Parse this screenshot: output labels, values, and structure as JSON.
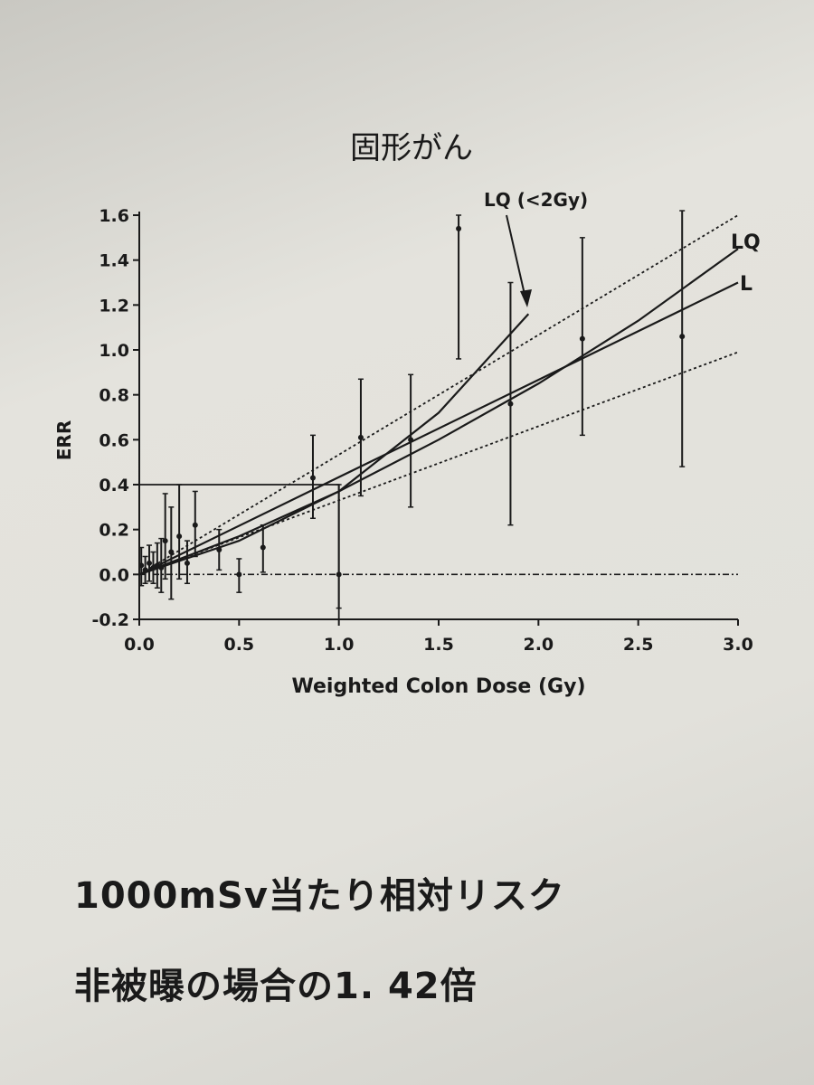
{
  "chart_data": {
    "type": "scatter",
    "title": "固形がん",
    "xlabel": "Weighted Colon Dose (Gy)",
    "ylabel": "ERR",
    "xlim": [
      0.0,
      3.0
    ],
    "ylim": [
      -0.2,
      1.6
    ],
    "x_ticks": [
      "0.0",
      "0.5",
      "1.0",
      "1.5",
      "2.0",
      "2.5",
      "3.0"
    ],
    "y_ticks": [
      "-0.2",
      "0.0",
      "0.2",
      "0.4",
      "0.6",
      "0.8",
      "1.0",
      "1.2",
      "1.4",
      "1.6"
    ],
    "points": [
      {
        "x": 0.01,
        "y": 0.04,
        "lo": -0.05,
        "hi": 0.12
      },
      {
        "x": 0.03,
        "y": 0.02,
        "lo": -0.04,
        "hi": 0.08
      },
      {
        "x": 0.05,
        "y": 0.05,
        "lo": -0.03,
        "hi": 0.13
      },
      {
        "x": 0.07,
        "y": 0.03,
        "lo": -0.04,
        "hi": 0.1
      },
      {
        "x": 0.09,
        "y": 0.04,
        "lo": -0.06,
        "hi": 0.14
      },
      {
        "x": 0.11,
        "y": 0.03,
        "lo": -0.08,
        "hi": 0.16
      },
      {
        "x": 0.13,
        "y": 0.15,
        "lo": -0.02,
        "hi": 0.36
      },
      {
        "x": 0.16,
        "y": 0.1,
        "lo": -0.11,
        "hi": 0.3
      },
      {
        "x": 0.2,
        "y": 0.17,
        "lo": -0.02,
        "hi": 0.4
      },
      {
        "x": 0.24,
        "y": 0.05,
        "lo": -0.04,
        "hi": 0.15
      },
      {
        "x": 0.28,
        "y": 0.22,
        "lo": 0.08,
        "hi": 0.37
      },
      {
        "x": 0.4,
        "y": 0.11,
        "lo": 0.02,
        "hi": 0.2
      },
      {
        "x": 0.5,
        "y": 0.0,
        "lo": -0.08,
        "hi": 0.07
      },
      {
        "x": 0.62,
        "y": 0.12,
        "lo": 0.01,
        "hi": 0.22
      },
      {
        "x": 0.87,
        "y": 0.43,
        "lo": 0.25,
        "hi": 0.62
      },
      {
        "x": 1.0,
        "y": 0.0,
        "lo": -0.15,
        "hi": 0.4
      },
      {
        "x": 1.11,
        "y": 0.61,
        "lo": 0.35,
        "hi": 0.87
      },
      {
        "x": 1.36,
        "y": 0.6,
        "lo": 0.3,
        "hi": 0.89
      },
      {
        "x": 1.6,
        "y": 1.54,
        "lo": 0.96,
        "hi": 1.6
      },
      {
        "x": 1.86,
        "y": 0.76,
        "lo": 0.22,
        "hi": 1.3
      },
      {
        "x": 2.22,
        "y": 1.05,
        "lo": 0.62,
        "hi": 1.5
      },
      {
        "x": 2.72,
        "y": 1.06,
        "lo": 0.48,
        "hi": 1.62
      }
    ],
    "lines": [
      {
        "name": "L",
        "style": "solid",
        "points": [
          [
            0,
            0
          ],
          [
            3.0,
            1.3
          ]
        ]
      },
      {
        "name": "LQ",
        "style": "solid",
        "points": [
          [
            0,
            0
          ],
          [
            0.5,
            0.17
          ],
          [
            1.0,
            0.37
          ],
          [
            1.5,
            0.6
          ],
          [
            2.0,
            0.85
          ],
          [
            2.5,
            1.13
          ],
          [
            3.0,
            1.45
          ]
        ]
      },
      {
        "name": "LQ (<2Gy)",
        "style": "solid",
        "points": [
          [
            0,
            0
          ],
          [
            0.5,
            0.15
          ],
          [
            1.0,
            0.37
          ],
          [
            1.5,
            0.72
          ],
          [
            1.95,
            1.16
          ]
        ]
      },
      {
        "name": "",
        "style": "dotted",
        "points": [
          [
            0,
            0
          ],
          [
            3.0,
            1.6
          ]
        ]
      },
      {
        "name": "",
        "style": "dotted",
        "points": [
          [
            0,
            0
          ],
          [
            3.0,
            0.99
          ]
        ]
      }
    ],
    "reference_lines": [
      {
        "style": "dash-dot",
        "y": 0.0
      },
      {
        "style": "solid",
        "points": [
          [
            0,
            0.4
          ],
          [
            1.0,
            0.4
          ],
          [
            1.0,
            -0.2
          ]
        ]
      }
    ],
    "annotations": {
      "lq_lt2": "LQ (<2Gy)",
      "lq": "LQ",
      "l": "L"
    }
  },
  "captions": {
    "line1": "1000mSv当たり相対リスク",
    "line2": "非被曝の場合の1. 42倍"
  }
}
